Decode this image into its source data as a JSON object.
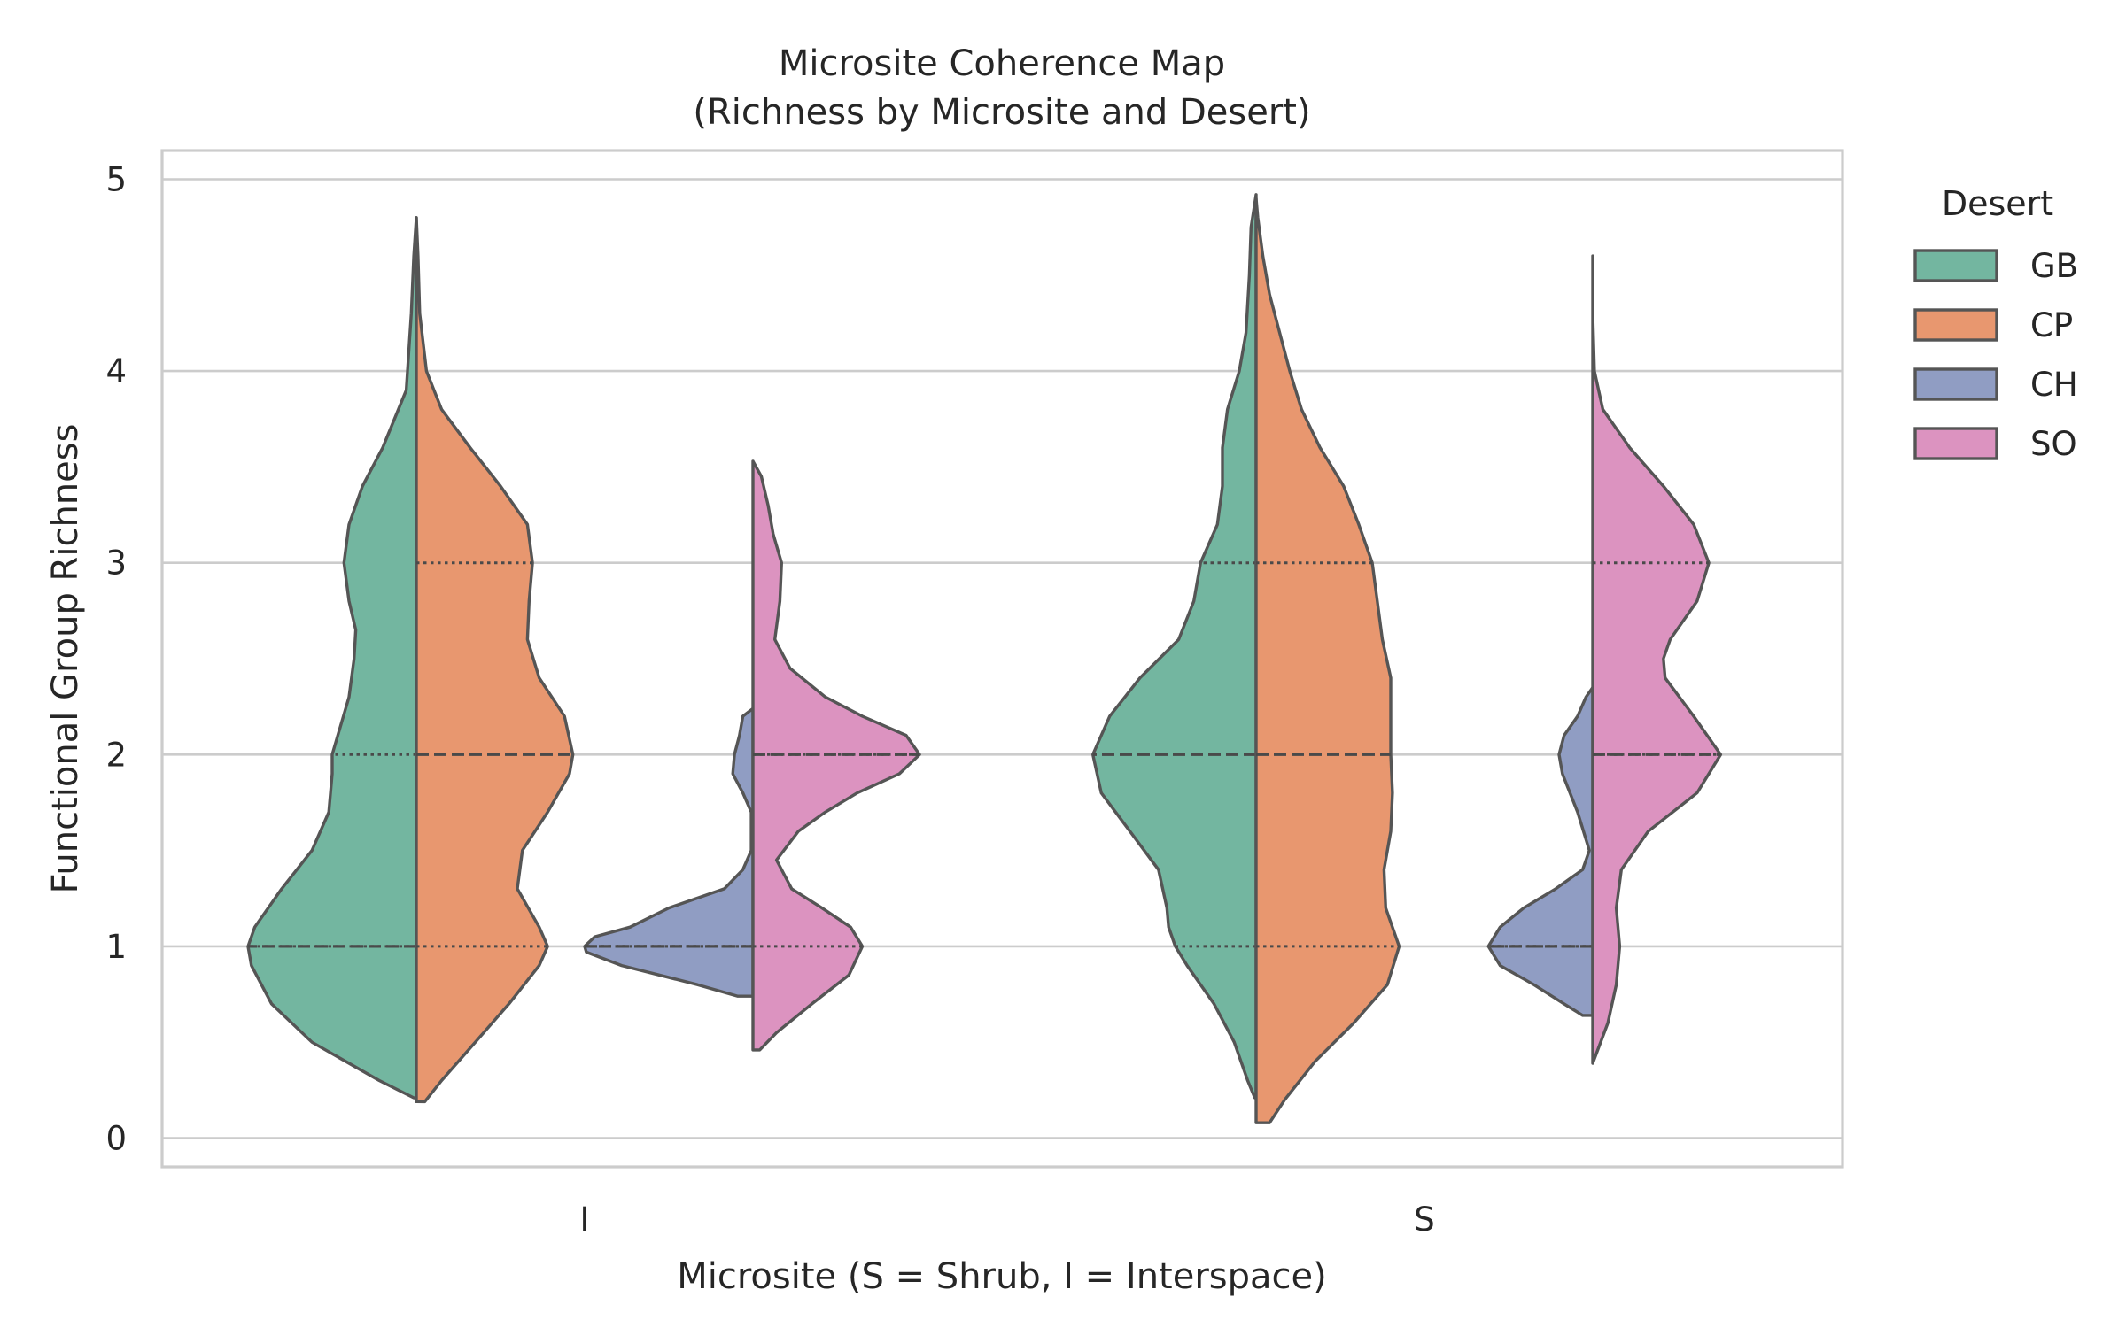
{
  "chart_data": {
    "type": "violin",
    "title": "Microsite Coherence Map\n(Richness by Microsite and Desert)",
    "title_lines": [
      "Microsite Coherence Map",
      "(Richness by Microsite and Desert)"
    ],
    "xlabel": "Microsite (S = Shrub, I = Interspace)",
    "ylabel": "Functional Group Richness",
    "categories": [
      "I",
      "S"
    ],
    "ylim": [
      -0.15,
      5.15
    ],
    "yticks": [
      0,
      1,
      2,
      3,
      4,
      5
    ],
    "yticklabels": [
      "0",
      "1",
      "2",
      "3",
      "4",
      "5"
    ],
    "grid": "horizontal",
    "legend": {
      "title": "Desert",
      "placement": "right-outside-top"
    },
    "split_pairs": [
      [
        "GB",
        "CP"
      ],
      [
        "CH",
        "SO"
      ]
    ],
    "series": [
      {
        "name": "GB",
        "color": "#73b6a0",
        "side": "left",
        "pair": 0,
        "quartiles": {
          "I": [
            1,
            1,
            2
          ],
          "S": [
            1,
            2,
            3
          ]
        },
        "violins": {
          "I": {
            "ymin": 0.21,
            "ymax": 4.8,
            "profile": [
              [
                0.21,
                0.015
              ],
              [
                0.3,
                0.22
              ],
              [
                0.5,
                0.62
              ],
              [
                0.7,
                0.86
              ],
              [
                0.9,
                0.98
              ],
              [
                1.0,
                1.0
              ],
              [
                1.1,
                0.96
              ],
              [
                1.3,
                0.8
              ],
              [
                1.5,
                0.62
              ],
              [
                1.7,
                0.52
              ],
              [
                1.9,
                0.5
              ],
              [
                2.0,
                0.5
              ],
              [
                2.15,
                0.45
              ],
              [
                2.3,
                0.4
              ],
              [
                2.5,
                0.37
              ],
              [
                2.65,
                0.36
              ],
              [
                2.8,
                0.4
              ],
              [
                3.0,
                0.43
              ],
              [
                3.2,
                0.4
              ],
              [
                3.4,
                0.32
              ],
              [
                3.6,
                0.2
              ],
              [
                3.9,
                0.06
              ],
              [
                4.3,
                0.03
              ],
              [
                4.6,
                0.015
              ],
              [
                4.8,
                0.0
              ]
            ]
          },
          "S": {
            "ymin": 0.21,
            "ymax": 4.92,
            "profile": [
              [
                0.21,
                0.008
              ],
              [
                0.3,
                0.05
              ],
              [
                0.5,
                0.13
              ],
              [
                0.7,
                0.25
              ],
              [
                0.9,
                0.41
              ],
              [
                1.0,
                0.48
              ],
              [
                1.1,
                0.52
              ],
              [
                1.2,
                0.53
              ],
              [
                1.4,
                0.58
              ],
              [
                1.6,
                0.75
              ],
              [
                1.8,
                0.92
              ],
              [
                2.0,
                0.97
              ],
              [
                2.2,
                0.87
              ],
              [
                2.4,
                0.69
              ],
              [
                2.6,
                0.46
              ],
              [
                2.8,
                0.37
              ],
              [
                3.0,
                0.33
              ],
              [
                3.2,
                0.23
              ],
              [
                3.4,
                0.2
              ],
              [
                3.6,
                0.2
              ],
              [
                3.8,
                0.17
              ],
              [
                4.0,
                0.1
              ],
              [
                4.2,
                0.06
              ],
              [
                4.5,
                0.04
              ],
              [
                4.75,
                0.03
              ],
              [
                4.92,
                0.0
              ]
            ]
          }
        }
      },
      {
        "name": "CP",
        "color": "#e8976f",
        "side": "right",
        "pair": 0,
        "quartiles": {
          "I": [
            1,
            2,
            3
          ],
          "S": [
            1,
            2,
            3
          ]
        },
        "violins": {
          "I": {
            "ymin": 0.19,
            "ymax": 4.8,
            "profile": [
              [
                0.19,
                0.05
              ],
              [
                0.3,
                0.15
              ],
              [
                0.5,
                0.35
              ],
              [
                0.7,
                0.55
              ],
              [
                0.9,
                0.73
              ],
              [
                1.0,
                0.78
              ],
              [
                1.1,
                0.73
              ],
              [
                1.3,
                0.6
              ],
              [
                1.5,
                0.63
              ],
              [
                1.7,
                0.78
              ],
              [
                1.9,
                0.91
              ],
              [
                2.0,
                0.93
              ],
              [
                2.2,
                0.88
              ],
              [
                2.4,
                0.73
              ],
              [
                2.6,
                0.66
              ],
              [
                2.8,
                0.67
              ],
              [
                3.0,
                0.69
              ],
              [
                3.2,
                0.66
              ],
              [
                3.4,
                0.5
              ],
              [
                3.6,
                0.32
              ],
              [
                3.8,
                0.15
              ],
              [
                4.0,
                0.06
              ],
              [
                4.3,
                0.02
              ],
              [
                4.6,
                0.01
              ],
              [
                4.8,
                0.0
              ]
            ]
          },
          "S": {
            "ymin": 0.08,
            "ymax": 4.9,
            "profile": [
              [
                0.08,
                0.08
              ],
              [
                0.2,
                0.17
              ],
              [
                0.4,
                0.35
              ],
              [
                0.6,
                0.58
              ],
              [
                0.8,
                0.78
              ],
              [
                1.0,
                0.85
              ],
              [
                1.2,
                0.77
              ],
              [
                1.4,
                0.76
              ],
              [
                1.6,
                0.8
              ],
              [
                1.8,
                0.81
              ],
              [
                2.0,
                0.8
              ],
              [
                2.2,
                0.8
              ],
              [
                2.4,
                0.8
              ],
              [
                2.6,
                0.75
              ],
              [
                2.8,
                0.72
              ],
              [
                3.0,
                0.69
              ],
              [
                3.2,
                0.61
              ],
              [
                3.4,
                0.52
              ],
              [
                3.6,
                0.38
              ],
              [
                3.8,
                0.27
              ],
              [
                4.0,
                0.2
              ],
              [
                4.2,
                0.14
              ],
              [
                4.4,
                0.08
              ],
              [
                4.6,
                0.04
              ],
              [
                4.8,
                0.01
              ],
              [
                4.9,
                0.0
              ]
            ]
          }
        }
      },
      {
        "name": "CH",
        "color": "#909dc3",
        "side": "left",
        "pair": 1,
        "quartiles": {
          "I": [
            1,
            1,
            1
          ],
          "S": [
            1,
            1,
            1
          ]
        },
        "violins": {
          "I": {
            "ymin": 0.74,
            "ymax": 2.24,
            "profile": [
              [
                0.74,
                0.09
              ],
              [
                0.8,
                0.33
              ],
              [
                0.9,
                0.78
              ],
              [
                0.97,
                0.99
              ],
              [
                1.0,
                1.0
              ],
              [
                1.05,
                0.94
              ],
              [
                1.1,
                0.73
              ],
              [
                1.2,
                0.5
              ],
              [
                1.3,
                0.17
              ],
              [
                1.4,
                0.06
              ],
              [
                1.5,
                0.01
              ],
              [
                1.7,
                0.01
              ],
              [
                1.8,
                0.06
              ],
              [
                1.9,
                0.12
              ],
              [
                2.0,
                0.11
              ],
              [
                2.1,
                0.08
              ],
              [
                2.2,
                0.06
              ],
              [
                2.24,
                0.0
              ]
            ]
          },
          "S": {
            "ymin": 0.64,
            "ymax": 2.35,
            "profile": [
              [
                0.64,
                0.06
              ],
              [
                0.7,
                0.17
              ],
              [
                0.8,
                0.35
              ],
              [
                0.9,
                0.55
              ],
              [
                1.0,
                0.62
              ],
              [
                1.1,
                0.55
              ],
              [
                1.2,
                0.41
              ],
              [
                1.3,
                0.22
              ],
              [
                1.4,
                0.06
              ],
              [
                1.5,
                0.02
              ],
              [
                1.7,
                0.09
              ],
              [
                1.9,
                0.18
              ],
              [
                2.0,
                0.2
              ],
              [
                2.1,
                0.17
              ],
              [
                2.2,
                0.09
              ],
              [
                2.3,
                0.04
              ],
              [
                2.35,
                0.0
              ]
            ]
          }
        }
      },
      {
        "name": "SO",
        "color": "#dc93c0",
        "side": "right",
        "pair": 1,
        "quartiles": {
          "I": [
            1,
            2,
            2
          ],
          "S": [
            2,
            2,
            3
          ]
        },
        "violins": {
          "I": {
            "ymin": 0.46,
            "ymax": 3.53,
            "profile": [
              [
                0.46,
                0.04
              ],
              [
                0.55,
                0.14
              ],
              [
                0.7,
                0.35
              ],
              [
                0.85,
                0.57
              ],
              [
                1.0,
                0.65
              ],
              [
                1.1,
                0.58
              ],
              [
                1.2,
                0.41
              ],
              [
                1.3,
                0.23
              ],
              [
                1.45,
                0.14
              ],
              [
                1.6,
                0.27
              ],
              [
                1.7,
                0.43
              ],
              [
                1.8,
                0.62
              ],
              [
                1.9,
                0.87
              ],
              [
                2.0,
                0.99
              ],
              [
                2.1,
                0.91
              ],
              [
                2.2,
                0.65
              ],
              [
                2.3,
                0.43
              ],
              [
                2.45,
                0.22
              ],
              [
                2.6,
                0.13
              ],
              [
                2.8,
                0.16
              ],
              [
                3.0,
                0.17
              ],
              [
                3.15,
                0.12
              ],
              [
                3.3,
                0.09
              ],
              [
                3.45,
                0.05
              ],
              [
                3.53,
                0.0
              ]
            ]
          },
          "S": {
            "ymin": 0.39,
            "ymax": 4.6,
            "profile": [
              [
                0.39,
                0.0
              ],
              [
                0.6,
                0.09
              ],
              [
                0.8,
                0.14
              ],
              [
                1.0,
                0.16
              ],
              [
                1.2,
                0.14
              ],
              [
                1.4,
                0.17
              ],
              [
                1.6,
                0.33
              ],
              [
                1.8,
                0.62
              ],
              [
                2.0,
                0.76
              ],
              [
                2.2,
                0.6
              ],
              [
                2.4,
                0.43
              ],
              [
                2.5,
                0.42
              ],
              [
                2.6,
                0.46
              ],
              [
                2.8,
                0.62
              ],
              [
                3.0,
                0.69
              ],
              [
                3.2,
                0.6
              ],
              [
                3.4,
                0.42
              ],
              [
                3.6,
                0.22
              ],
              [
                3.8,
                0.06
              ],
              [
                4.0,
                0.01
              ],
              [
                4.3,
                0.0
              ],
              [
                4.6,
                0.0
              ]
            ]
          }
        }
      }
    ]
  }
}
